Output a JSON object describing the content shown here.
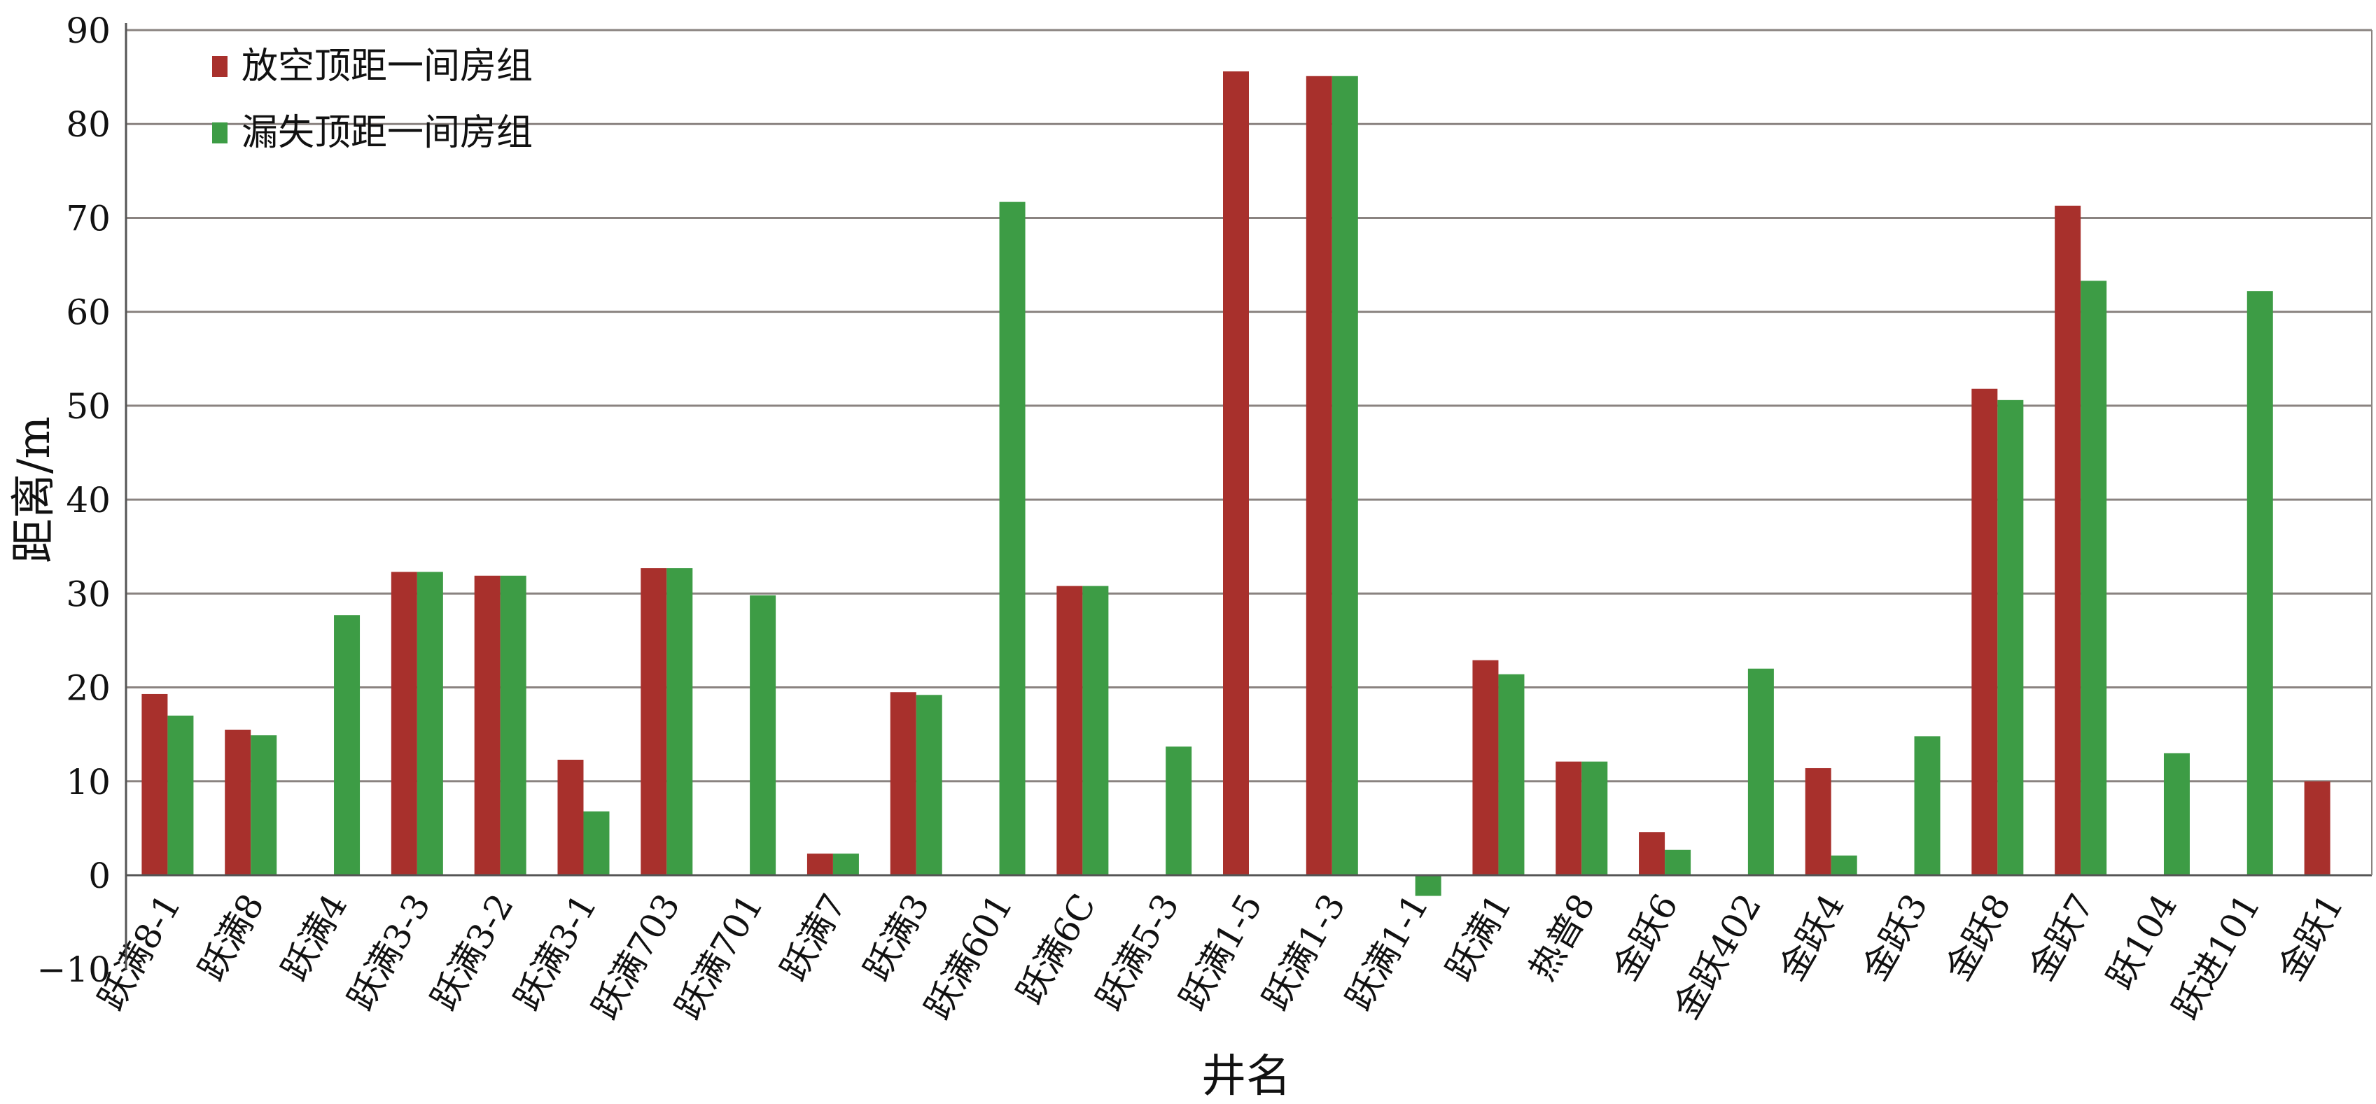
{
  "chart_data": {
    "type": "bar",
    "title": "",
    "xlabel": "井名",
    "ylabel": "距离/m",
    "ylim": [
      -10,
      90
    ],
    "yticks": [
      -10,
      0,
      10,
      20,
      30,
      40,
      50,
      60,
      70,
      80,
      90
    ],
    "grid": true,
    "legend_placement": "top-left",
    "categories": [
      "跃满8-1",
      "跃满8",
      "跃满4",
      "跃满3-3",
      "跃满3-2",
      "跃满3-1",
      "跃满703",
      "跃满701",
      "跃满7",
      "跃满3",
      "跃满601",
      "跃满6C",
      "跃满5-3",
      "跃满1-5",
      "跃满1-3",
      "跃满1-1",
      "跃满1",
      "热普8",
      "金跃6",
      "金跃402",
      "金跃4",
      "金跃3",
      "金跃8",
      "金跃7",
      "跃104",
      "跃进101",
      "金跃1"
    ],
    "series": [
      {
        "name": "放空顶距一间房组",
        "color": "#a8302c",
        "values": [
          19.3,
          15.5,
          null,
          32.3,
          31.9,
          12.3,
          32.7,
          null,
          2.3,
          19.5,
          null,
          30.8,
          null,
          85.6,
          85.1,
          null,
          22.9,
          12.1,
          4.6,
          null,
          11.4,
          null,
          51.8,
          71.3,
          null,
          null,
          10.0
        ]
      },
      {
        "name": "漏失顶距一间房组",
        "color": "#3d9c45",
        "values": [
          17.0,
          14.9,
          27.7,
          32.3,
          31.9,
          6.8,
          32.7,
          29.8,
          2.3,
          19.2,
          71.7,
          30.8,
          13.7,
          null,
          85.1,
          -2.2,
          21.4,
          12.1,
          2.7,
          22.0,
          2.1,
          14.8,
          50.6,
          63.3,
          13.0,
          62.2,
          null
        ]
      }
    ]
  }
}
